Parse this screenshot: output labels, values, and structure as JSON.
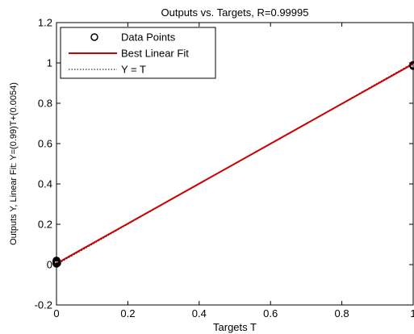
{
  "chart_data": {
    "type": "scatter",
    "title": "Outputs vs. Targets, R=0.99995",
    "xlabel": "Targets T",
    "ylabel": "Outputs Y,  Linear Fit: Y=(0.99)T+(0.0054)",
    "xlim": [
      0,
      1
    ],
    "ylim": [
      -0.2,
      1.2
    ],
    "xticks": [
      0,
      0.2,
      0.4,
      0.6,
      0.8,
      1
    ],
    "xtick_labels": [
      "0",
      "0.2",
      "0.4",
      "0.6",
      "0.8",
      "1"
    ],
    "yticks": [
      -0.2,
      0,
      0.2,
      0.4,
      0.6,
      0.8,
      1,
      1.2
    ],
    "ytick_labels": [
      "-0.2",
      "0",
      "0.2",
      "0.4",
      "0.6",
      "0.8",
      "1",
      "1.2"
    ],
    "grid": false,
    "legend_position": "top-left",
    "series": [
      {
        "name": "Data Points",
        "kind": "markers",
        "marker": "circle-open",
        "color": "#000000",
        "points": [
          [
            0,
            0.005
          ],
          [
            0,
            0.01
          ],
          [
            0,
            0.015
          ],
          [
            0,
            0.02
          ],
          [
            0.002,
            0.008
          ],
          [
            1,
            0.99
          ],
          [
            1,
            0.985
          ]
        ]
      },
      {
        "name": "Best Linear Fit",
        "kind": "line",
        "color": "#cc0000",
        "slope": 0.99,
        "intercept": 0.0054,
        "x": [
          0,
          1
        ]
      },
      {
        "name": "Y = T",
        "kind": "line",
        "style": "dotted",
        "color": "#000000",
        "slope": 1,
        "intercept": 0,
        "x": [
          0,
          1
        ]
      }
    ]
  }
}
